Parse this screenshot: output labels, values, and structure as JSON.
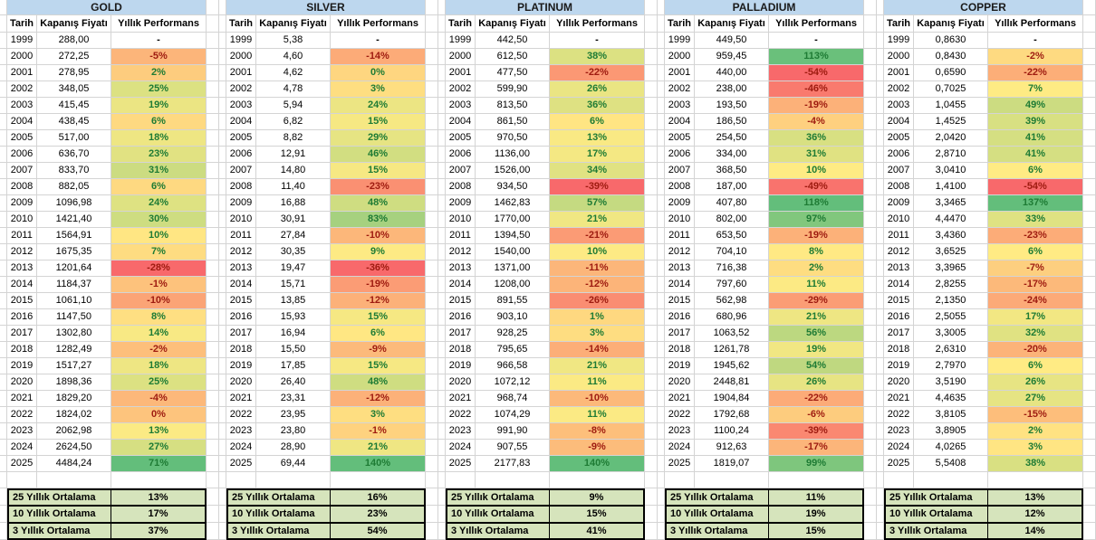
{
  "palette": {
    "gridline": "#d4d4d4",
    "title_bg": "#bdd7ee",
    "summary_bg": "#d6e4bc",
    "scale_min": "#f8696b",
    "scale_mid": "#ffeb84",
    "scale_max": "#63be7b",
    "pos_text": "#1e7b34",
    "neg_text": "#9e1b10"
  },
  "columns": {
    "date": "Tarih",
    "price": "Kapanış Fiyatı",
    "perf": "Yıllık Performans"
  },
  "summary_labels": [
    "25 Yıllık Ortalama",
    "10 Yıllık Ortalama",
    "3 Yıllık Ortalama"
  ],
  "tables": [
    {
      "title": "GOLD",
      "rows": [
        [
          "1999",
          "288,00",
          "-",
          null
        ],
        [
          "2000",
          "272,25",
          "-5%",
          -5
        ],
        [
          "2001",
          "278,95",
          "2%",
          2
        ],
        [
          "2002",
          "348,05",
          "25%",
          25
        ],
        [
          "2003",
          "415,45",
          "19%",
          19
        ],
        [
          "2004",
          "438,45",
          "6%",
          6
        ],
        [
          "2005",
          "517,00",
          "18%",
          18
        ],
        [
          "2006",
          "636,70",
          "23%",
          23
        ],
        [
          "2007",
          "833,70",
          "31%",
          31
        ],
        [
          "2008",
          "882,05",
          "6%",
          6
        ],
        [
          "2009",
          "1096,98",
          "24%",
          24
        ],
        [
          "2010",
          "1421,40",
          "30%",
          30
        ],
        [
          "2011",
          "1564,91",
          "10%",
          10
        ],
        [
          "2012",
          "1675,35",
          "7%",
          7
        ],
        [
          "2013",
          "1201,64",
          "-28%",
          -28
        ],
        [
          "2014",
          "1184,37",
          "-1%",
          -1
        ],
        [
          "2015",
          "1061,10",
          "-10%",
          -10
        ],
        [
          "2016",
          "1147,50",
          "8%",
          8
        ],
        [
          "2017",
          "1302,80",
          "14%",
          14
        ],
        [
          "2018",
          "1282,49",
          "-2%",
          -2
        ],
        [
          "2019",
          "1517,27",
          "18%",
          18
        ],
        [
          "2020",
          "1898,36",
          "25%",
          25
        ],
        [
          "2021",
          "1829,20",
          "-4%",
          -4
        ],
        [
          "2022",
          "1824,02",
          "0%",
          -0.3
        ],
        [
          "2023",
          "2062,98",
          "13%",
          13
        ],
        [
          "2024",
          "2624,50",
          "27%",
          27
        ],
        [
          "2025",
          "4484,24",
          "71%",
          71
        ]
      ],
      "summary": [
        "13%",
        "17%",
        "37%"
      ]
    },
    {
      "title": "SILVER",
      "rows": [
        [
          "1999",
          "5,38",
          "-",
          null
        ],
        [
          "2000",
          "4,60",
          "-14%",
          -14
        ],
        [
          "2001",
          "4,62",
          "0%",
          0.4
        ],
        [
          "2002",
          "4,78",
          "3%",
          3
        ],
        [
          "2003",
          "5,94",
          "24%",
          24
        ],
        [
          "2004",
          "6,82",
          "15%",
          15
        ],
        [
          "2005",
          "8,82",
          "29%",
          29
        ],
        [
          "2006",
          "12,91",
          "46%",
          46
        ],
        [
          "2007",
          "14,80",
          "15%",
          15
        ],
        [
          "2008",
          "11,40",
          "-23%",
          -23
        ],
        [
          "2009",
          "16,88",
          "48%",
          48
        ],
        [
          "2010",
          "30,91",
          "83%",
          83
        ],
        [
          "2011",
          "27,84",
          "-10%",
          -10
        ],
        [
          "2012",
          "30,35",
          "9%",
          9
        ],
        [
          "2013",
          "19,47",
          "-36%",
          -36
        ],
        [
          "2014",
          "15,71",
          "-19%",
          -19
        ],
        [
          "2015",
          "13,85",
          "-12%",
          -12
        ],
        [
          "2016",
          "15,93",
          "15%",
          15
        ],
        [
          "2017",
          "16,94",
          "6%",
          6
        ],
        [
          "2018",
          "15,50",
          "-9%",
          -9
        ],
        [
          "2019",
          "17,85",
          "15%",
          15
        ],
        [
          "2020",
          "26,40",
          "48%",
          48
        ],
        [
          "2021",
          "23,31",
          "-12%",
          -12
        ],
        [
          "2022",
          "23,95",
          "3%",
          3
        ],
        [
          "2023",
          "23,80",
          "-1%",
          -1
        ],
        [
          "2024",
          "28,90",
          "21%",
          21
        ],
        [
          "2025",
          "69,44",
          "140%",
          140
        ]
      ],
      "summary": [
        "16%",
        "23%",
        "54%"
      ]
    },
    {
      "title": "PLATINUM",
      "rows": [
        [
          "1999",
          "442,50",
          "-",
          null
        ],
        [
          "2000",
          "612,50",
          "38%",
          38
        ],
        [
          "2001",
          "477,50",
          "-22%",
          -22
        ],
        [
          "2002",
          "599,90",
          "26%",
          26
        ],
        [
          "2003",
          "813,50",
          "36%",
          36
        ],
        [
          "2004",
          "861,50",
          "6%",
          6
        ],
        [
          "2005",
          "970,50",
          "13%",
          13
        ],
        [
          "2006",
          "1136,00",
          "17%",
          17
        ],
        [
          "2007",
          "1526,00",
          "34%",
          34
        ],
        [
          "2008",
          "934,50",
          "-39%",
          -39
        ],
        [
          "2009",
          "1462,83",
          "57%",
          57
        ],
        [
          "2010",
          "1770,00",
          "21%",
          21
        ],
        [
          "2011",
          "1394,50",
          "-21%",
          -21
        ],
        [
          "2012",
          "1540,00",
          "10%",
          10
        ],
        [
          "2013",
          "1371,00",
          "-11%",
          -11
        ],
        [
          "2014",
          "1208,00",
          "-12%",
          -12
        ],
        [
          "2015",
          "891,55",
          "-26%",
          -26
        ],
        [
          "2016",
          "903,10",
          "1%",
          1
        ],
        [
          "2017",
          "928,25",
          "3%",
          3
        ],
        [
          "2018",
          "795,65",
          "-14%",
          -14
        ],
        [
          "2019",
          "966,58",
          "21%",
          21
        ],
        [
          "2020",
          "1072,12",
          "11%",
          11
        ],
        [
          "2021",
          "968,74",
          "-10%",
          -10
        ],
        [
          "2022",
          "1074,29",
          "11%",
          11
        ],
        [
          "2023",
          "991,90",
          "-8%",
          -8
        ],
        [
          "2024",
          "907,55",
          "-9%",
          -9
        ],
        [
          "2025",
          "2177,83",
          "140%",
          140
        ]
      ],
      "summary": [
        "9%",
        "15%",
        "41%"
      ]
    },
    {
      "title": "PALLADIUM",
      "rows": [
        [
          "1999",
          "449,50",
          "-",
          null
        ],
        [
          "2000",
          "959,45",
          "113%",
          113
        ],
        [
          "2001",
          "440,00",
          "-54%",
          -54
        ],
        [
          "2002",
          "238,00",
          "-46%",
          -46
        ],
        [
          "2003",
          "193,50",
          "-19%",
          -19
        ],
        [
          "2004",
          "186,50",
          "-4%",
          -4
        ],
        [
          "2005",
          "254,50",
          "36%",
          36
        ],
        [
          "2006",
          "334,00",
          "31%",
          31
        ],
        [
          "2007",
          "368,50",
          "10%",
          10
        ],
        [
          "2008",
          "187,00",
          "-49%",
          -49
        ],
        [
          "2009",
          "407,80",
          "118%",
          118
        ],
        [
          "2010",
          "802,00",
          "97%",
          97
        ],
        [
          "2011",
          "653,50",
          "-19%",
          -19
        ],
        [
          "2012",
          "704,10",
          "8%",
          8
        ],
        [
          "2013",
          "716,38",
          "2%",
          2
        ],
        [
          "2014",
          "797,60",
          "11%",
          11
        ],
        [
          "2015",
          "562,98",
          "-29%",
          -29
        ],
        [
          "2016",
          "680,96",
          "21%",
          21
        ],
        [
          "2017",
          "1063,52",
          "56%",
          56
        ],
        [
          "2018",
          "1261,78",
          "19%",
          19
        ],
        [
          "2019",
          "1945,62",
          "54%",
          54
        ],
        [
          "2020",
          "2448,81",
          "26%",
          26
        ],
        [
          "2021",
          "1904,84",
          "-22%",
          -22
        ],
        [
          "2022",
          "1792,68",
          "-6%",
          -6
        ],
        [
          "2023",
          "1100,24",
          "-39%",
          -39
        ],
        [
          "2024",
          "912,63",
          "-17%",
          -17
        ],
        [
          "2025",
          "1819,07",
          "99%",
          99
        ]
      ],
      "summary": [
        "11%",
        "19%",
        "15%"
      ]
    },
    {
      "title": "COPPER",
      "rows": [
        [
          "1999",
          "0,8630",
          "-",
          null
        ],
        [
          "2000",
          "0,8430",
          "-2%",
          -2
        ],
        [
          "2001",
          "0,6590",
          "-22%",
          -22
        ],
        [
          "2002",
          "0,7025",
          "7%",
          7
        ],
        [
          "2003",
          "1,0455",
          "49%",
          49
        ],
        [
          "2004",
          "1,4525",
          "39%",
          39
        ],
        [
          "2005",
          "2,0420",
          "41%",
          41
        ],
        [
          "2006",
          "2,8710",
          "41%",
          41
        ],
        [
          "2007",
          "3,0410",
          "6%",
          6
        ],
        [
          "2008",
          "1,4100",
          "-54%",
          -54
        ],
        [
          "2009",
          "3,3465",
          "137%",
          137
        ],
        [
          "2010",
          "4,4470",
          "33%",
          33
        ],
        [
          "2011",
          "3,4360",
          "-23%",
          -23
        ],
        [
          "2012",
          "3,6525",
          "6%",
          6
        ],
        [
          "2013",
          "3,3965",
          "-7%",
          -7
        ],
        [
          "2014",
          "2,8255",
          "-17%",
          -17
        ],
        [
          "2015",
          "2,1350",
          "-24%",
          -24
        ],
        [
          "2016",
          "2,5055",
          "17%",
          17
        ],
        [
          "2017",
          "3,3005",
          "32%",
          32
        ],
        [
          "2018",
          "2,6310",
          "-20%",
          -20
        ],
        [
          "2019",
          "2,7970",
          "6%",
          6
        ],
        [
          "2020",
          "3,5190",
          "26%",
          26
        ],
        [
          "2021",
          "4,4635",
          "27%",
          27
        ],
        [
          "2022",
          "3,8105",
          "-15%",
          -15
        ],
        [
          "2023",
          "3,8905",
          "2%",
          2
        ],
        [
          "2024",
          "4,0265",
          "3%",
          3
        ],
        [
          "2025",
          "5,5408",
          "38%",
          38
        ]
      ],
      "summary": [
        "13%",
        "12%",
        "14%"
      ]
    }
  ]
}
